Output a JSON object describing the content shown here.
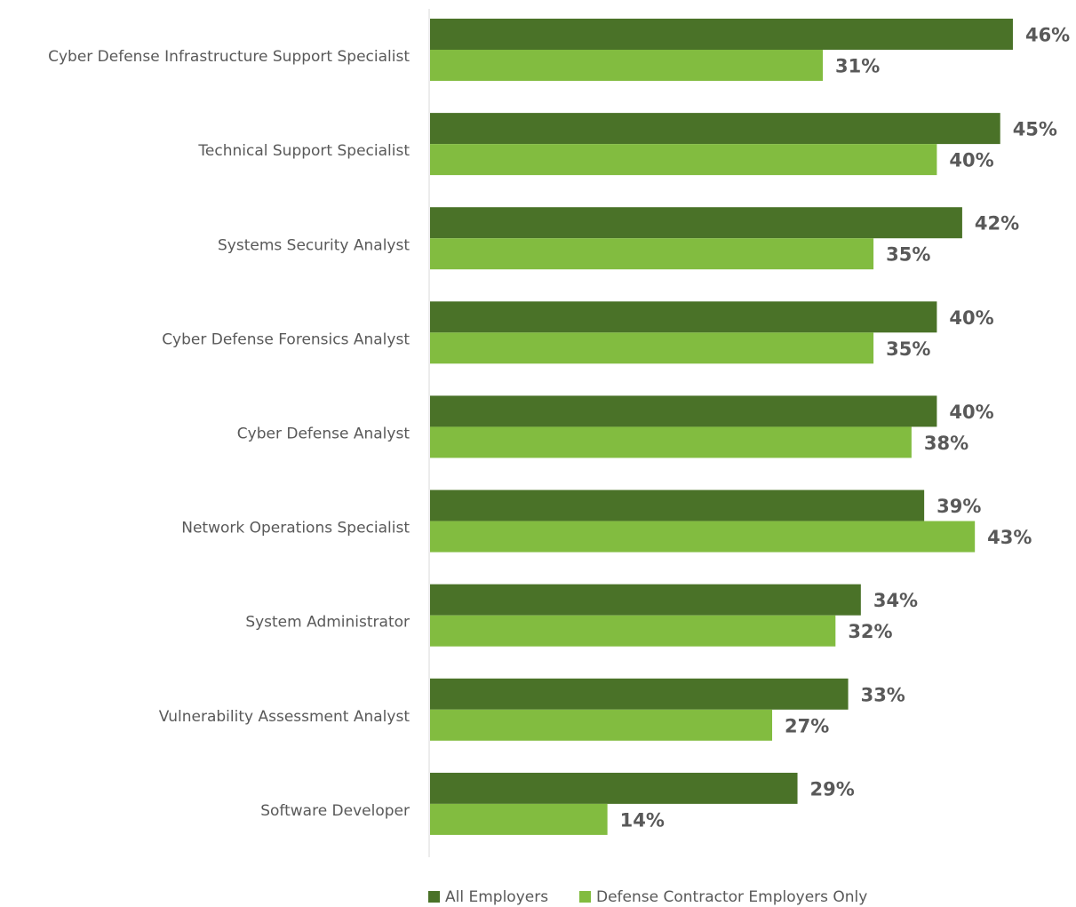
{
  "chart_data": {
    "type": "bar",
    "orientation": "horizontal",
    "categories": [
      "Cyber Defense Infrastructure Support Specialist",
      "Technical Support Specialist",
      "Systems Security Analyst",
      "Cyber Defense Forensics Analyst",
      "Cyber Defense Analyst",
      "Network Operations Specialist",
      "System Administrator",
      "Vulnerability Assessment Analyst",
      "Software Developer"
    ],
    "series": [
      {
        "name": "All Employers",
        "color": "#4a7228",
        "values": [
          46,
          45,
          42,
          40,
          40,
          39,
          34,
          33,
          29
        ],
        "labels": [
          "46%",
          "45%",
          "42%",
          "40%",
          "40%",
          "39%",
          "34%",
          "33%",
          "29%"
        ]
      },
      {
        "name": "Defense Contractor Employers Only",
        "color": "#82bc40",
        "values": [
          31,
          40,
          35,
          35,
          38,
          43,
          32,
          27,
          14
        ],
        "labels": [
          "31%",
          "40%",
          "35%",
          "35%",
          "38%",
          "43%",
          "32%",
          "27%",
          "14%"
        ]
      }
    ],
    "xlim": [
      0,
      50
    ],
    "grid": false,
    "legend_position": "bottom",
    "axis_color": "#d9d9d9",
    "text_color": "#595959"
  }
}
